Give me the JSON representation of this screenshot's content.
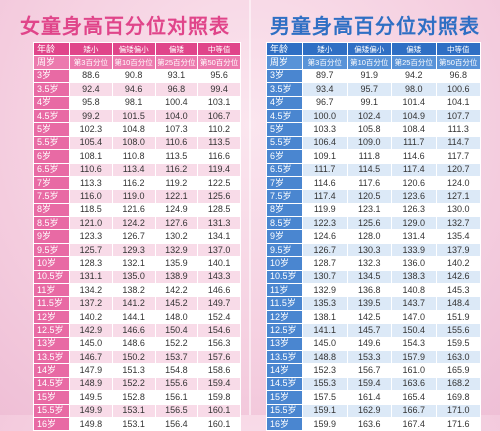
{
  "girls": {
    "title": "女童身高百分位对照表",
    "headers": [
      "年龄",
      "矮小",
      "偏矮偏小",
      "偏矮",
      "中等值"
    ],
    "subheaders": [
      "周岁",
      "第3百分位",
      "第10百分位",
      "第25百分位",
      "第50百分位"
    ],
    "rows": [
      [
        "3岁",
        "88.6",
        "90.8",
        "93.1",
        "95.6"
      ],
      [
        "3.5岁",
        "92.4",
        "94.6",
        "96.8",
        "99.4"
      ],
      [
        "4岁",
        "95.8",
        "98.1",
        "100.4",
        "103.1"
      ],
      [
        "4.5岁",
        "99.2",
        "101.5",
        "104.0",
        "106.7"
      ],
      [
        "5岁",
        "102.3",
        "104.8",
        "107.3",
        "110.2"
      ],
      [
        "5.5岁",
        "105.4",
        "108.0",
        "110.6",
        "113.5"
      ],
      [
        "6岁",
        "108.1",
        "110.8",
        "113.5",
        "116.6"
      ],
      [
        "6.5岁",
        "110.6",
        "113.4",
        "116.2",
        "119.4"
      ],
      [
        "7岁",
        "113.3",
        "116.2",
        "119.2",
        "122.5"
      ],
      [
        "7.5岁",
        "116.0",
        "119.0",
        "122.1",
        "125.6"
      ],
      [
        "8岁",
        "118.5",
        "121.6",
        "124.9",
        "128.5"
      ],
      [
        "8.5岁",
        "121.0",
        "124.2",
        "127.6",
        "131.3"
      ],
      [
        "9岁",
        "123.3",
        "126.7",
        "130.2",
        "134.1"
      ],
      [
        "9.5岁",
        "125.7",
        "129.3",
        "132.9",
        "137.0"
      ],
      [
        "10岁",
        "128.3",
        "132.1",
        "135.9",
        "140.1"
      ],
      [
        "10.5岁",
        "131.1",
        "135.0",
        "138.9",
        "143.3"
      ],
      [
        "11岁",
        "134.2",
        "138.2",
        "142.2",
        "146.6"
      ],
      [
        "11.5岁",
        "137.2",
        "141.2",
        "145.2",
        "149.7"
      ],
      [
        "12岁",
        "140.2",
        "144.1",
        "148.0",
        "152.4"
      ],
      [
        "12.5岁",
        "142.9",
        "146.6",
        "150.4",
        "154.6"
      ],
      [
        "13岁",
        "145.0",
        "148.6",
        "152.2",
        "156.3"
      ],
      [
        "13.5岁",
        "146.7",
        "150.2",
        "153.7",
        "157.6"
      ],
      [
        "14岁",
        "147.9",
        "151.3",
        "154.8",
        "158.6"
      ],
      [
        "14.5岁",
        "148.9",
        "152.2",
        "155.6",
        "159.4"
      ],
      [
        "15岁",
        "149.5",
        "152.8",
        "156.1",
        "159.8"
      ],
      [
        "15.5岁",
        "149.9",
        "153.1",
        "156.5",
        "160.1"
      ],
      [
        "16岁",
        "149.8",
        "153.1",
        "156.4",
        "160.1"
      ]
    ]
  },
  "boys": {
    "title": "男童身高百分位对照表",
    "headers": [
      "年龄",
      "矮小",
      "偏矮偏小",
      "偏矮",
      "中等值"
    ],
    "subheaders": [
      "周岁",
      "第3百分位",
      "第10百分位",
      "第25百分位",
      "第50百分位"
    ],
    "rows": [
      [
        "3岁",
        "89.7",
        "91.9",
        "94.2",
        "96.8"
      ],
      [
        "3.5岁",
        "93.4",
        "95.7",
        "98.0",
        "100.6"
      ],
      [
        "4岁",
        "96.7",
        "99.1",
        "101.4",
        "104.1"
      ],
      [
        "4.5岁",
        "100.0",
        "102.4",
        "104.9",
        "107.7"
      ],
      [
        "5岁",
        "103.3",
        "105.8",
        "108.4",
        "111.3"
      ],
      [
        "5.5岁",
        "106.4",
        "109.0",
        "111.7",
        "114.7"
      ],
      [
        "6岁",
        "109.1",
        "111.8",
        "114.6",
        "117.7"
      ],
      [
        "6.5岁",
        "111.7",
        "114.5",
        "117.4",
        "120.7"
      ],
      [
        "7岁",
        "114.6",
        "117.6",
        "120.6",
        "124.0"
      ],
      [
        "7.5岁",
        "117.4",
        "120.5",
        "123.6",
        "127.1"
      ],
      [
        "8岁",
        "119.9",
        "123.1",
        "126.3",
        "130.0"
      ],
      [
        "8.5岁",
        "122.3",
        "125.6",
        "129.0",
        "132.7"
      ],
      [
        "9岁",
        "124.6",
        "128.0",
        "131.4",
        "135.4"
      ],
      [
        "9.5岁",
        "126.7",
        "130.3",
        "133.9",
        "137.9"
      ],
      [
        "10岁",
        "128.7",
        "132.3",
        "136.0",
        "140.2"
      ],
      [
        "10.5岁",
        "130.7",
        "134.5",
        "138.3",
        "142.6"
      ],
      [
        "11岁",
        "132.9",
        "136.8",
        "140.8",
        "145.3"
      ],
      [
        "11.5岁",
        "135.3",
        "139.5",
        "143.7",
        "148.4"
      ],
      [
        "12岁",
        "138.1",
        "142.5",
        "147.0",
        "151.9"
      ],
      [
        "12.5岁",
        "141.1",
        "145.7",
        "150.4",
        "155.6"
      ],
      [
        "13岁",
        "145.0",
        "149.6",
        "154.3",
        "159.5"
      ],
      [
        "13.5岁",
        "148.8",
        "153.3",
        "157.9",
        "163.0"
      ],
      [
        "14岁",
        "152.3",
        "156.7",
        "161.0",
        "165.9"
      ],
      [
        "14.5岁",
        "155.3",
        "159.4",
        "163.6",
        "168.2"
      ],
      [
        "15岁",
        "157.5",
        "161.4",
        "165.4",
        "169.8"
      ],
      [
        "15.5岁",
        "159.1",
        "162.9",
        "166.7",
        "171.0"
      ],
      [
        "16岁",
        "159.9",
        "163.6",
        "167.4",
        "171.6"
      ]
    ]
  }
}
